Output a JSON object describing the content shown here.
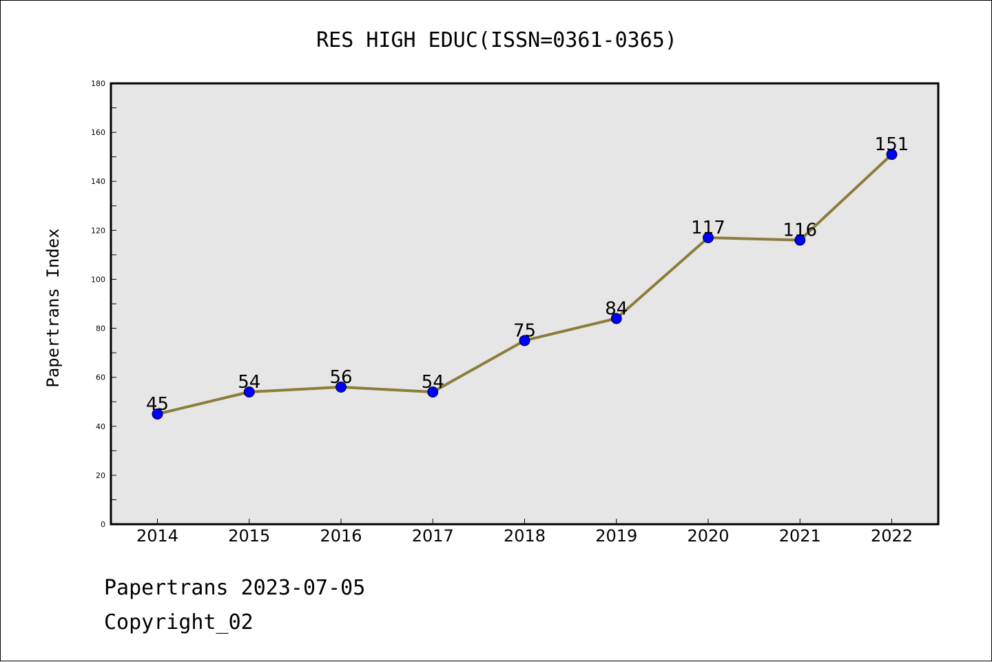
{
  "chart_data": {
    "type": "line",
    "title": "RES HIGH EDUC(ISSN=0361-0365)",
    "xlabel": "",
    "ylabel": "Papertrans Index",
    "categories": [
      "2014",
      "2015",
      "2016",
      "2017",
      "2018",
      "2019",
      "2020",
      "2021",
      "2022"
    ],
    "values": [
      45,
      54,
      56,
      54,
      75,
      84,
      117,
      116,
      151
    ],
    "data_labels": [
      "45",
      "54",
      "56",
      "54",
      "75",
      "84",
      "117",
      "116",
      "151"
    ],
    "ylim": [
      0,
      180
    ],
    "yticks": [
      "0",
      "20",
      "40",
      "60",
      "80",
      "100",
      "120",
      "140",
      "160",
      "180"
    ],
    "grid": false,
    "legend": "none",
    "colors": {
      "line": "#8b7d3a",
      "marker": "#0000ff",
      "plot_background": "#e6e6e6"
    }
  },
  "footer": {
    "line1": "Papertrans 2023-07-05",
    "line2": "Copyright_02"
  }
}
